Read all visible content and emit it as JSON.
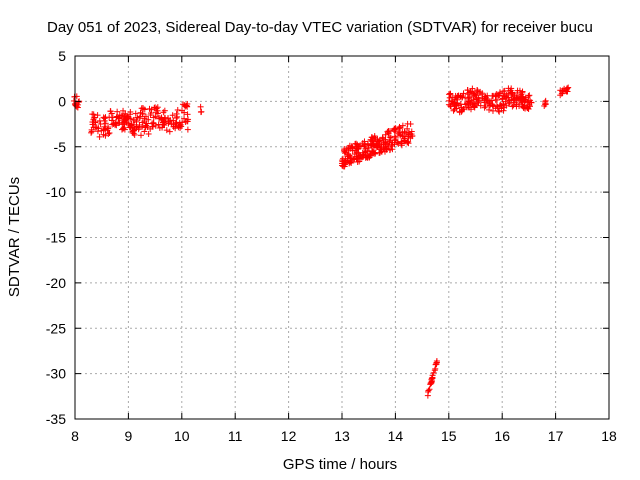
{
  "chart_data": {
    "type": "scatter",
    "title": "Day 051 of 2023, Sidereal Day-to-day VTEC variation (SDTVAR) for receiver bucu",
    "xlabel": "GPS time / hours",
    "ylabel": "SDTVAR / TECUs",
    "xlim": [
      8,
      18
    ],
    "ylim": [
      -35,
      5
    ],
    "x_ticks": [
      8,
      9,
      10,
      11,
      12,
      13,
      14,
      15,
      16,
      17,
      18
    ],
    "y_ticks": [
      5,
      0,
      -5,
      -10,
      -15,
      -20,
      -25,
      -30,
      -35
    ],
    "grid": true,
    "marker": "+",
    "marker_color": "#ff0000",
    "series": [
      {
        "clusters": [
          {
            "x_start": 7.98,
            "x_end": 8.08,
            "y_center": 0.0,
            "y_amp": 0.8,
            "y_slope": -0.15,
            "count": 14
          },
          {
            "x_start": 8.3,
            "x_end": 10.12,
            "y_center": -2.0,
            "y_amp": 0.6,
            "y_slope": 0.35,
            "count": 230,
            "bands": [
              -1.4,
              -2.2,
              -3.0
            ]
          },
          {
            "x_start": 10.35,
            "x_end": 10.38,
            "y_center": -1.0,
            "y_amp": 1.2,
            "y_slope": 0,
            "count": 3
          },
          {
            "x_start": 13.0,
            "x_end": 14.32,
            "y_center": -4.8,
            "y_amp": 1.1,
            "y_slope": 2.2,
            "count": 230
          },
          {
            "x_start": 14.6,
            "x_end": 14.78,
            "y_center": -30.5,
            "y_amp": 0.2,
            "y_slope": 21.0,
            "count": 26
          },
          {
            "x_start": 15.0,
            "x_end": 16.55,
            "y_center": 0.0,
            "y_amp": 0.55,
            "y_slope": 0.1,
            "count": 230,
            "bands": [
              0.6,
              -0.4
            ]
          },
          {
            "x_start": 16.78,
            "x_end": 16.82,
            "y_center": 0.0,
            "y_amp": 0.8,
            "y_slope": 0,
            "count": 6
          },
          {
            "x_start": 17.08,
            "x_end": 17.25,
            "y_center": 1.1,
            "y_amp": 0.4,
            "y_slope": 0.5,
            "count": 18
          }
        ]
      }
    ]
  }
}
